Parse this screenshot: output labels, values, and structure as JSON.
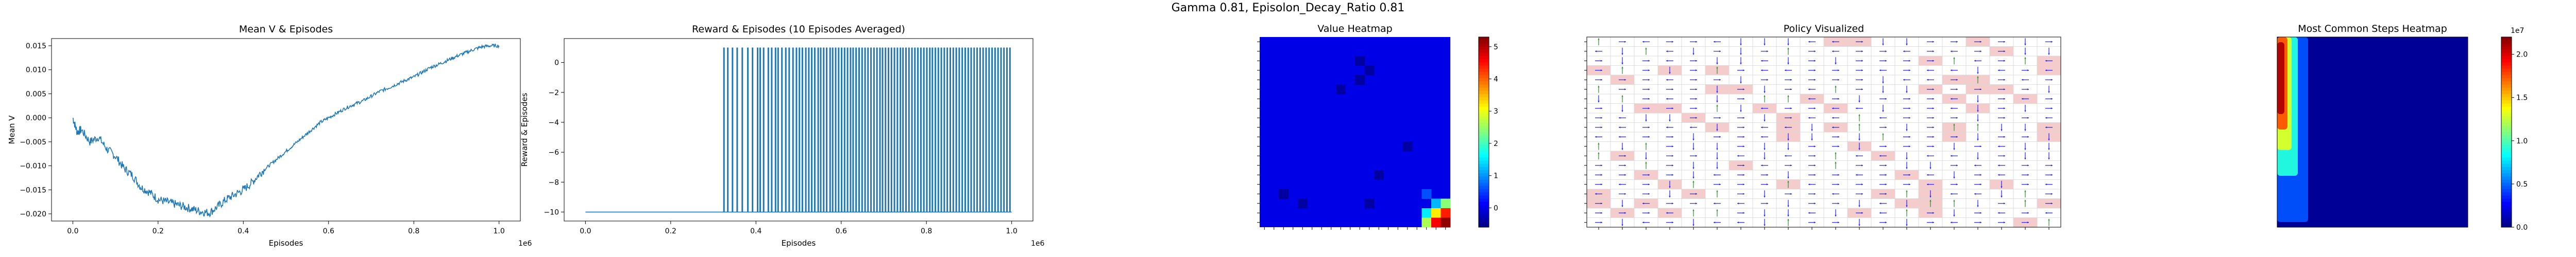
{
  "suptitle": "Gamma  0.81, Episolon_Decay_Ratio 0.81",
  "chart_data": [
    {
      "id": "mean_v",
      "type": "line",
      "title": "Mean V & Episodes",
      "xlabel": "Episodes",
      "ylabel": "Mean V",
      "x_offset_label": "1e6",
      "xlim": [
        -0.05,
        1.05
      ],
      "ylim": [
        -0.0215,
        0.0165
      ],
      "xticks": [
        0.0,
        0.2,
        0.4,
        0.6,
        0.8,
        1.0
      ],
      "xtick_labels": [
        "0.0",
        "0.2",
        "0.4",
        "0.6",
        "0.8",
        "1.0"
      ],
      "yticks": [
        -0.02,
        -0.015,
        -0.01,
        -0.005,
        0.0,
        0.005,
        0.01,
        0.015
      ],
      "ytick_labels": [
        "−0.020",
        "−0.015",
        "−0.010",
        "−0.005",
        "0.000",
        "0.005",
        "0.010",
        "0.015"
      ],
      "color": "#1f77b4",
      "x": [
        0.0,
        0.01,
        0.02,
        0.04,
        0.06,
        0.08,
        0.1,
        0.12,
        0.14,
        0.16,
        0.18,
        0.2,
        0.22,
        0.24,
        0.26,
        0.28,
        0.3,
        0.32,
        0.34,
        0.36,
        0.38,
        0.4,
        0.42,
        0.44,
        0.46,
        0.48,
        0.5,
        0.52,
        0.54,
        0.56,
        0.58,
        0.6,
        0.62,
        0.64,
        0.66,
        0.68,
        0.7,
        0.72,
        0.74,
        0.76,
        0.78,
        0.8,
        0.82,
        0.84,
        0.86,
        0.88,
        0.9,
        0.92,
        0.94,
        0.96,
        0.98,
        1.0
      ],
      "y": [
        0.0,
        -0.003,
        -0.0025,
        -0.005,
        -0.004,
        -0.0065,
        -0.008,
        -0.0105,
        -0.012,
        -0.0145,
        -0.0155,
        -0.017,
        -0.0175,
        -0.018,
        -0.0185,
        -0.019,
        -0.0195,
        -0.0198,
        -0.0185,
        -0.017,
        -0.016,
        -0.015,
        -0.0135,
        -0.0115,
        -0.01,
        -0.0085,
        -0.007,
        -0.0055,
        -0.004,
        -0.0025,
        -0.001,
        0.0,
        0.001,
        0.002,
        0.0028,
        0.0035,
        0.0045,
        0.0055,
        0.0062,
        0.007,
        0.0078,
        0.0085,
        0.0095,
        0.0105,
        0.0112,
        0.012,
        0.0128,
        0.0135,
        0.0142,
        0.0148,
        0.015,
        0.015
      ]
    },
    {
      "id": "reward",
      "type": "bar",
      "title": "Reward & Episodes (10 Episodes Averaged)",
      "xlabel": "Episodes",
      "ylabel": "Reward & Episodes",
      "x_offset_label": "1e6",
      "xlim": [
        -0.05,
        1.05
      ],
      "ylim": [
        -10.6,
        1.6
      ],
      "xticks": [
        0.0,
        0.2,
        0.4,
        0.6,
        0.8,
        1.0
      ],
      "xtick_labels": [
        "0.0",
        "0.2",
        "0.4",
        "0.6",
        "0.8",
        "1.0"
      ],
      "yticks": [
        -10,
        -8,
        -6,
        -4,
        -2,
        0
      ],
      "ytick_labels": [
        "−10",
        "−8",
        "−6",
        "−4",
        "−2",
        "0"
      ],
      "color": "#1f77b4",
      "baseline_value": -10,
      "spike_value": 1,
      "spike_x": [
        0.325,
        0.334,
        0.345,
        0.356,
        0.368,
        0.381,
        0.392,
        0.404,
        0.41,
        0.418,
        0.429,
        0.437,
        0.446,
        0.452,
        0.461,
        0.47,
        0.478,
        0.487,
        0.495,
        0.502,
        0.509,
        0.517,
        0.524,
        0.531,
        0.538,
        0.546,
        0.552,
        0.559,
        0.566,
        0.574,
        0.58,
        0.587,
        0.594,
        0.601,
        0.608,
        0.615,
        0.622,
        0.628,
        0.635,
        0.642,
        0.649,
        0.656,
        0.663,
        0.67,
        0.677,
        0.684,
        0.691,
        0.697,
        0.704,
        0.711,
        0.718,
        0.725,
        0.732,
        0.739,
        0.745,
        0.752,
        0.759,
        0.766,
        0.773,
        0.78,
        0.787,
        0.794,
        0.801,
        0.808,
        0.814,
        0.821,
        0.828,
        0.835,
        0.842,
        0.849,
        0.856,
        0.863,
        0.87,
        0.877,
        0.884,
        0.891,
        0.898,
        0.905,
        0.912,
        0.919,
        0.926,
        0.933,
        0.94,
        0.947,
        0.954,
        0.961,
        0.968,
        0.975,
        0.982,
        0.989,
        0.996
      ]
    },
    {
      "id": "value_heatmap",
      "type": "heatmap",
      "title": "Value Heatmap",
      "colormap": "jet",
      "colorbar_ticks": [
        0,
        1,
        2,
        3,
        4,
        5
      ],
      "colorbar_tick_labels": [
        "0",
        "1",
        "2",
        "3",
        "4",
        "5"
      ],
      "vmin": -0.6,
      "vmax": 5.3,
      "grid_size": 20,
      "background_value": 0.0,
      "cells": [
        {
          "row": 2,
          "col": 10,
          "value": -0.4
        },
        {
          "row": 3,
          "col": 11,
          "value": -0.4
        },
        {
          "row": 4,
          "col": 10,
          "value": -0.4
        },
        {
          "row": 5,
          "col": 8,
          "value": -0.4
        },
        {
          "row": 11,
          "col": 15,
          "value": -0.4
        },
        {
          "row": 14,
          "col": 12,
          "value": -0.4
        },
        {
          "row": 16,
          "col": 2,
          "value": -0.4
        },
        {
          "row": 17,
          "col": 4,
          "value": -0.4
        },
        {
          "row": 17,
          "col": 11,
          "value": -0.4
        },
        {
          "row": 16,
          "col": 17,
          "value": 0.6
        },
        {
          "row": 17,
          "col": 18,
          "value": 1.2
        },
        {
          "row": 18,
          "col": 17,
          "value": 1.5
        },
        {
          "row": 17,
          "col": 19,
          "value": 2.4
        },
        {
          "row": 18,
          "col": 18,
          "value": 3.2
        },
        {
          "row": 19,
          "col": 17,
          "value": 2.6
        },
        {
          "row": 18,
          "col": 19,
          "value": 4.4
        },
        {
          "row": 19,
          "col": 18,
          "value": 4.6
        },
        {
          "row": 19,
          "col": 19,
          "value": 5.2
        }
      ]
    },
    {
      "id": "policy",
      "type": "heatmap",
      "title": "Policy Visualized",
      "grid_size": 20,
      "arrow_colors": {
        "right": "#1a1aff",
        "down": "#1a1aff",
        "left": "#1a1aff",
        "up": "#2a8a2a"
      },
      "hole_color": "#f4cccc"
    },
    {
      "id": "steps_heatmap",
      "type": "heatmap",
      "title": "Most Common Steps Heatmap",
      "colormap": "jet",
      "colorbar_ticks": [
        0.0,
        0.5,
        1.0,
        1.5,
        2.0
      ],
      "colorbar_tick_labels": [
        "0.0",
        "0.5",
        "1.0",
        "1.5",
        "2.0"
      ],
      "colorbar_offset_label": "1e7",
      "vmin": 0.0,
      "vmax": 2.2
    }
  ]
}
